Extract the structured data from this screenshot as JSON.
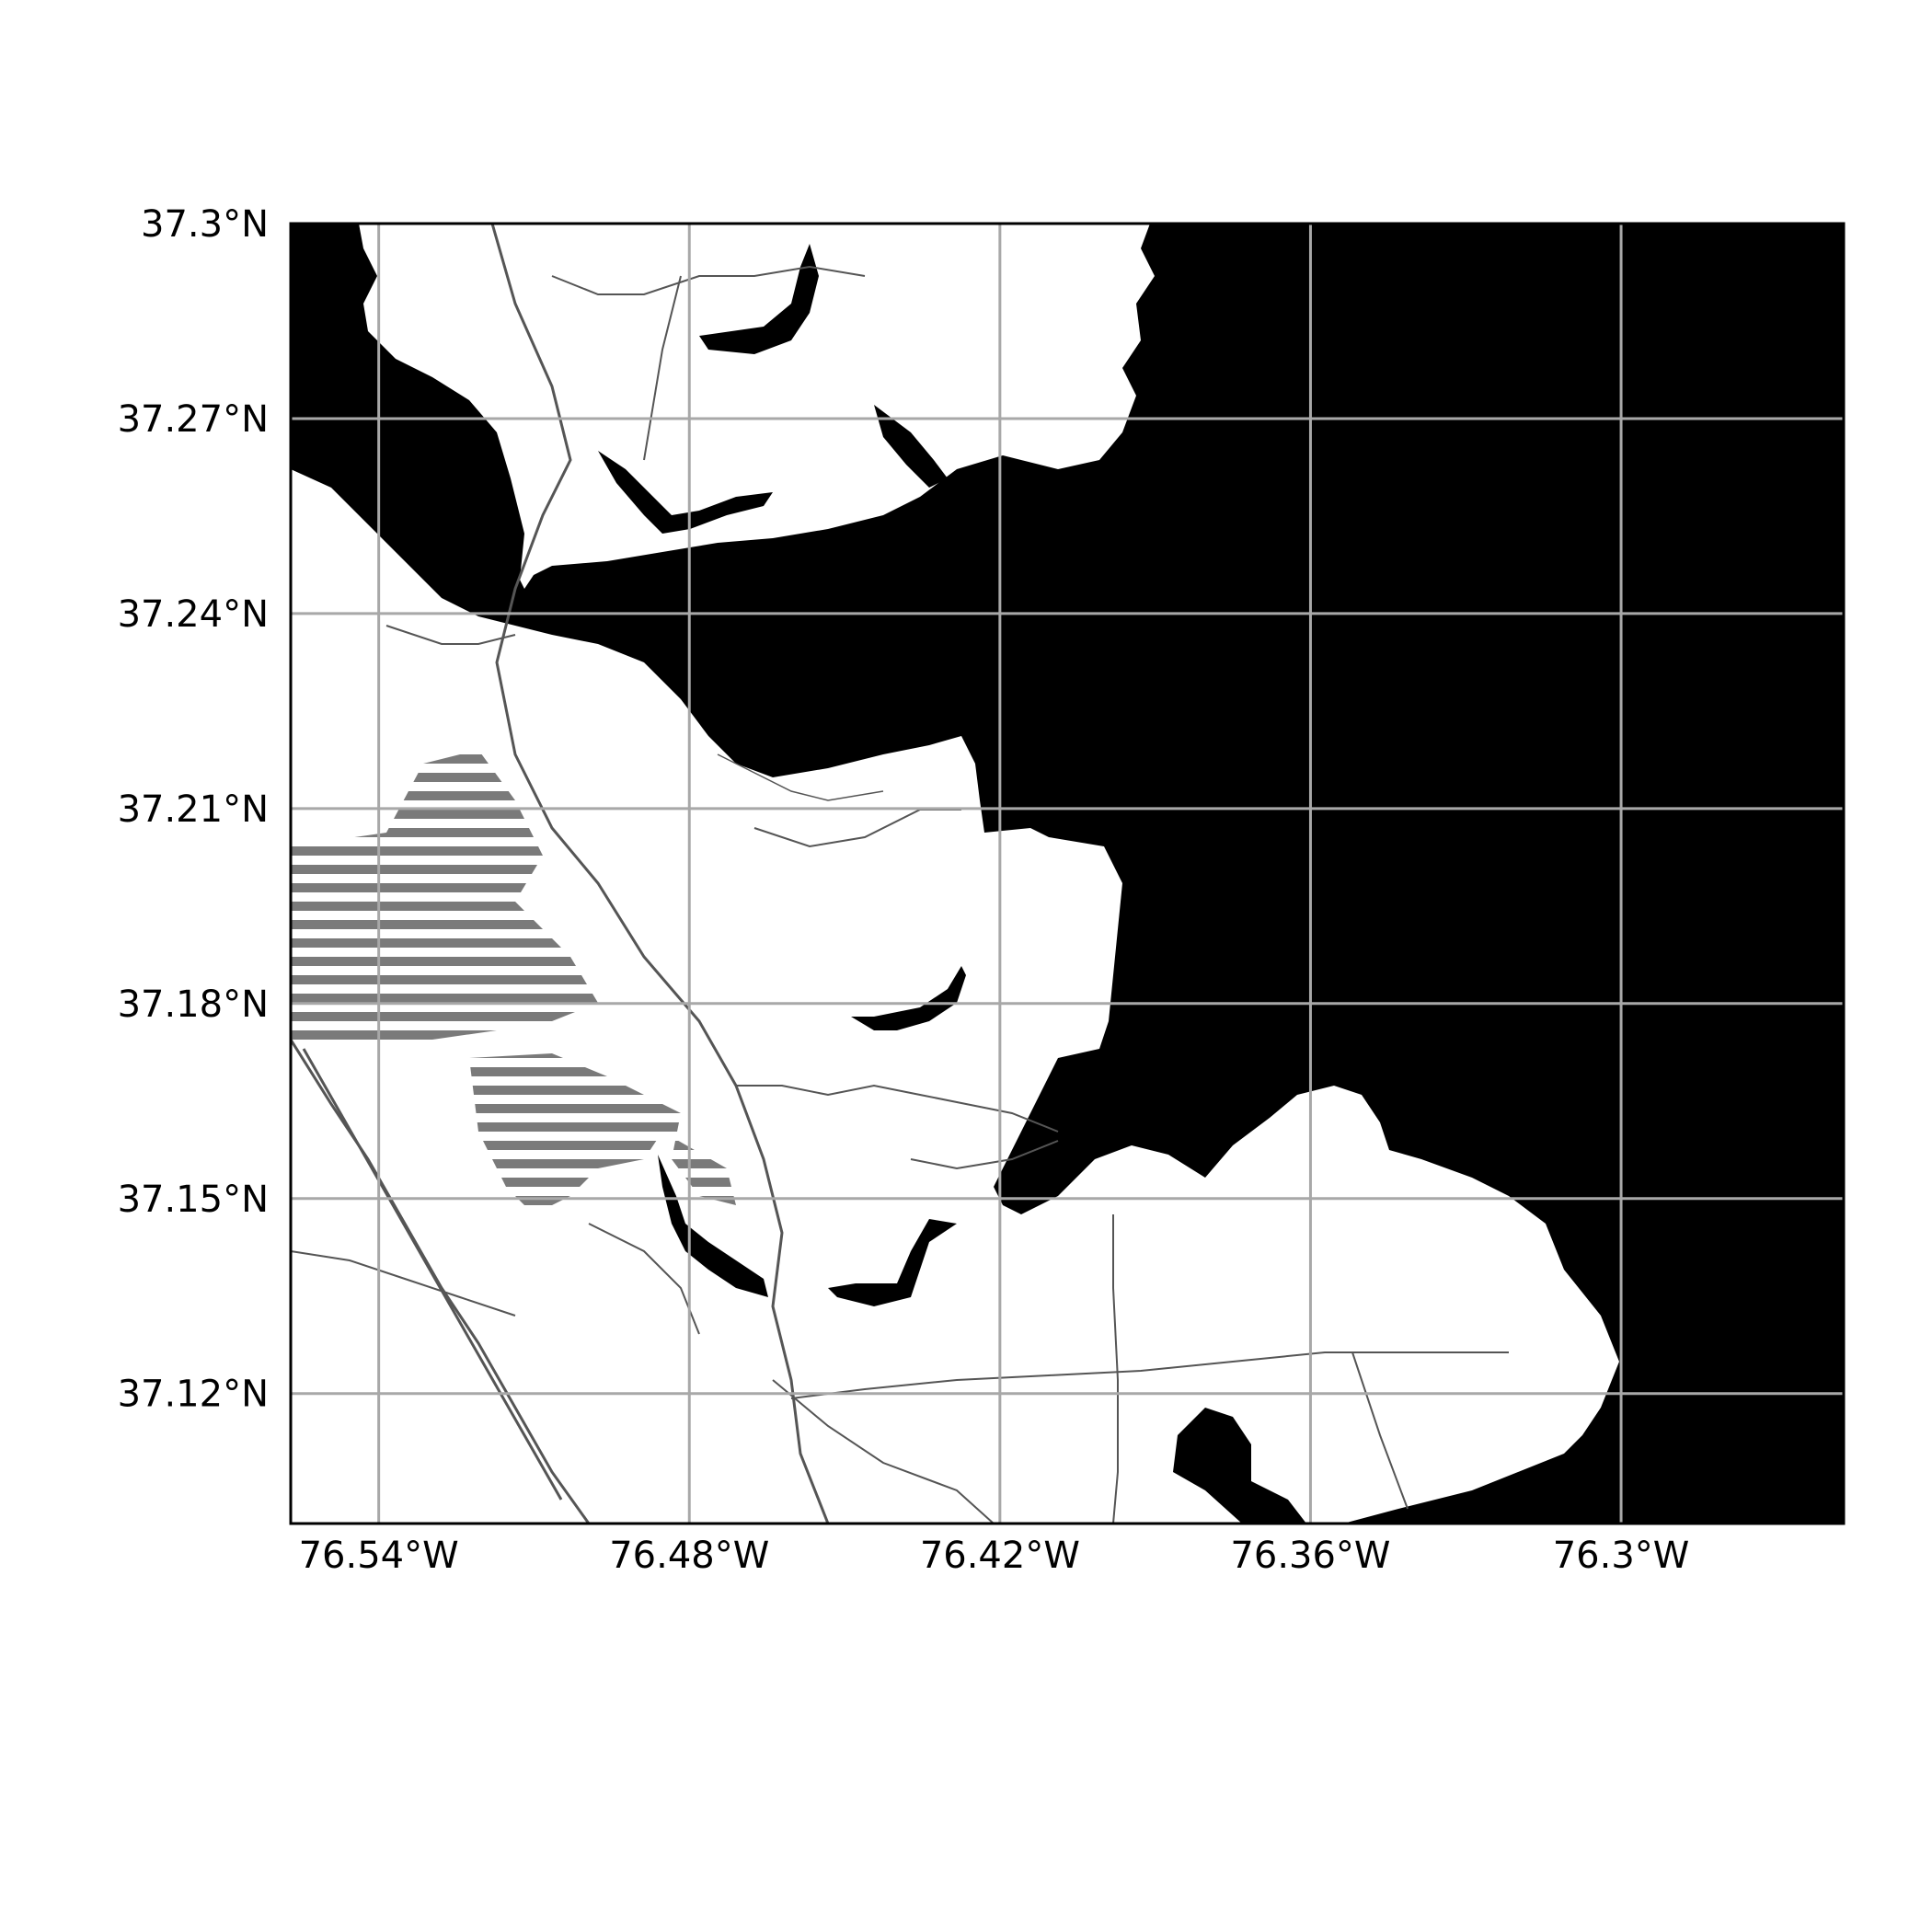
{
  "map": {
    "projection": "PlateCarree",
    "style": "black water, white land, grey gridlines",
    "extent": {
      "lon_min": -76.557,
      "lon_max": -76.257,
      "lat_min": 37.1,
      "lat_max": 37.3
    },
    "colors": {
      "water": "#000000",
      "land": "#ffffff",
      "grid": "#a8a8a8",
      "hatch": "#7a7a7a",
      "frame": "#000000"
    },
    "gridlines": true,
    "lon_ticks": [
      {
        "value": -76.54,
        "label": "76.54°W"
      },
      {
        "value": -76.48,
        "label": "76.48°W"
      },
      {
        "value": -76.42,
        "label": "76.42°W"
      },
      {
        "value": -76.36,
        "label": "76.36°W"
      },
      {
        "value": -76.3,
        "label": "76.3°W"
      }
    ],
    "lat_ticks": [
      {
        "value": 37.3,
        "label": "37.3°N"
      },
      {
        "value": 37.27,
        "label": "37.27°N"
      },
      {
        "value": 37.24,
        "label": "37.24°N"
      },
      {
        "value": 37.21,
        "label": "37.21°N"
      },
      {
        "value": 37.18,
        "label": "37.18°N"
      },
      {
        "value": 37.15,
        "label": "37.15°N"
      },
      {
        "value": 37.12,
        "label": "37.12°N"
      }
    ]
  }
}
